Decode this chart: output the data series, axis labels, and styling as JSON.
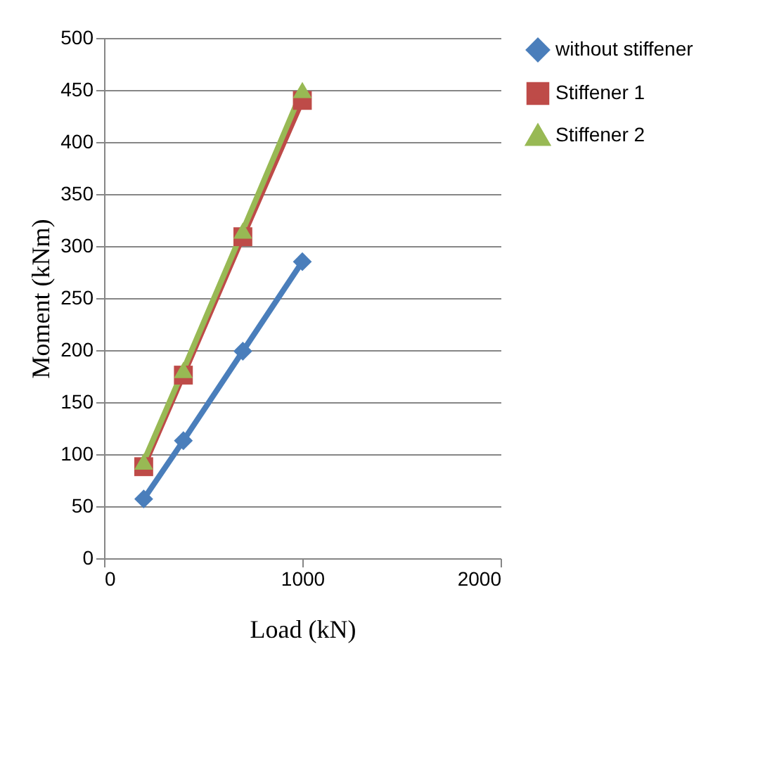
{
  "chart_data": {
    "type": "line",
    "xlabel": "Load (kN)",
    "ylabel": "Moment (kNm)",
    "x": [
      200,
      400,
      700,
      1000
    ],
    "series": [
      {
        "name": "without stiffener",
        "color": "#4a7ebb",
        "marker": "diamond",
        "values": [
          57,
          113,
          199,
          285
        ]
      },
      {
        "name": "Stiffener 1",
        "color": "#be4b48",
        "marker": "square",
        "values": [
          88,
          176,
          309,
          440
        ]
      },
      {
        "name": "Stiffener 2",
        "color": "#98b954",
        "marker": "triangle",
        "values": [
          93,
          181,
          315,
          450
        ]
      }
    ],
    "xlim": [
      0,
      2000
    ],
    "xticks": [
      0,
      1000,
      2000
    ],
    "ylim": [
      0,
      500
    ],
    "yticks": [
      0,
      50,
      100,
      150,
      200,
      250,
      300,
      350,
      400,
      450,
      500
    ],
    "grid": "y",
    "legend": "right"
  }
}
